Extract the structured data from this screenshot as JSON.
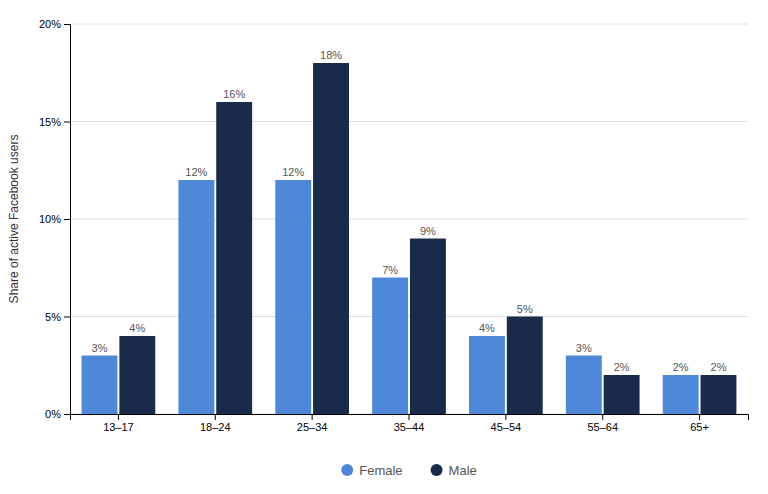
{
  "chart_data": {
    "type": "bar",
    "categories": [
      "13–17",
      "18–24",
      "25–34",
      "35–44",
      "45–54",
      "55–64",
      "65+"
    ],
    "series": [
      {
        "name": "Female",
        "color": "#4d88d9",
        "values": [
          3,
          12,
          12,
          7,
          4,
          3,
          2
        ],
        "value_labels": [
          "3%",
          "12%",
          "12%",
          "7%",
          "4%",
          "3%",
          "2%"
        ]
      },
      {
        "name": "Male",
        "color": "#1a2a4a",
        "values": [
          4,
          16,
          18,
          9,
          5,
          2,
          2
        ],
        "value_labels": [
          "4%",
          "16%",
          "18%",
          "9%",
          "5%",
          "2%",
          "2%"
        ]
      }
    ],
    "ylabel": "Share of active Facebook users",
    "ylim": [
      0,
      20
    ],
    "yticks": [
      {
        "value": 0,
        "label": "0%"
      },
      {
        "value": 5,
        "label": "5%"
      },
      {
        "value": 10,
        "label": "10%"
      },
      {
        "value": 15,
        "label": "15%"
      },
      {
        "value": 20,
        "label": "20%"
      }
    ],
    "grid": true,
    "data_labels": true,
    "legend": "bottom"
  }
}
